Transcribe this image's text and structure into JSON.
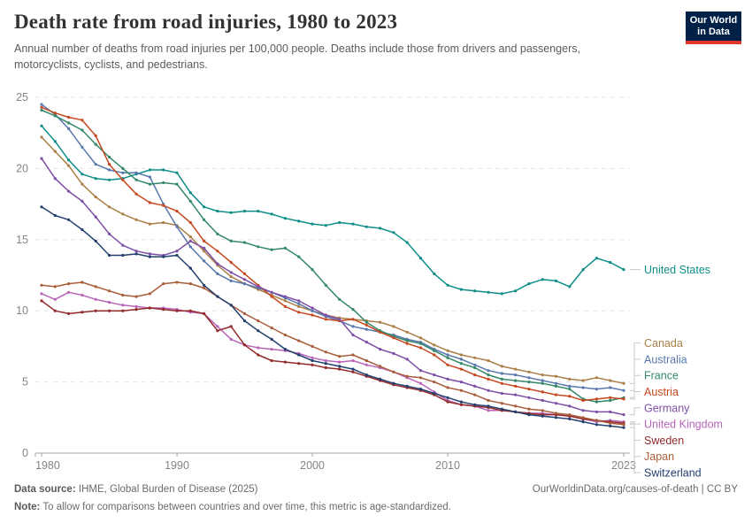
{
  "header": {
    "title": "Death rate from road injuries, 1980 to 2023",
    "subtitle": "Annual number of deaths from road injuries per 100,000 people. Deaths include those from drivers and passengers, motorcyclists, cyclists, and pedestrians.",
    "logo": {
      "line1": "Our World",
      "line2": "in Data",
      "bg_color": "#002147",
      "accent_color": "#E0362C"
    }
  },
  "chart_data": {
    "type": "line",
    "title": "Death rate from road injuries, 1980 to 2023",
    "xlabel": "",
    "ylabel": "",
    "x_range": [
      1980,
      2023
    ],
    "years": [
      1980,
      1981,
      1982,
      1983,
      1984,
      1985,
      1986,
      1987,
      1988,
      1989,
      1990,
      1991,
      1992,
      1993,
      1994,
      1995,
      1996,
      1997,
      1998,
      1999,
      2000,
      2001,
      2002,
      2003,
      2004,
      2005,
      2006,
      2007,
      2008,
      2009,
      2010,
      2011,
      2012,
      2013,
      2014,
      2015,
      2016,
      2017,
      2018,
      2019,
      2020,
      2021,
      2022,
      2023
    ],
    "ylim": [
      0,
      25
    ],
    "y_ticks": [
      0,
      5,
      10,
      15,
      20,
      25
    ],
    "x_ticks": [
      1980,
      1990,
      2000,
      2010,
      2023
    ],
    "grid": "horizontal-dashed",
    "legend_position": "right-labels",
    "style": {
      "grid_color": "#E4E4E4",
      "axis_color": "#A6A6A6",
      "tick_label_color": "#858585",
      "connector_color": "#C9C9C9"
    },
    "series": [
      {
        "name": "United States",
        "color": "#0F8E89",
        "values": [
          23.0,
          21.9,
          20.6,
          19.6,
          19.3,
          19.2,
          19.3,
          19.6,
          19.9,
          19.9,
          19.7,
          18.3,
          17.3,
          17.0,
          16.9,
          17.0,
          17.0,
          16.8,
          16.5,
          16.3,
          16.1,
          16.0,
          16.2,
          16.1,
          15.9,
          15.8,
          15.5,
          14.8,
          13.7,
          12.6,
          11.8,
          11.5,
          11.4,
          11.3,
          11.2,
          11.4,
          11.9,
          12.2,
          12.1,
          11.7,
          12.9,
          13.7,
          13.4,
          12.9
        ]
      },
      {
        "name": "Canada",
        "color": "#AB7F47",
        "values": [
          22.2,
          21.2,
          20.2,
          18.9,
          18.0,
          17.3,
          16.8,
          16.4,
          16.1,
          16.2,
          16.0,
          15.2,
          14.2,
          13.2,
          12.4,
          11.9,
          11.5,
          11.1,
          10.7,
          10.3,
          10.0,
          9.7,
          9.5,
          9.4,
          9.3,
          9.2,
          8.9,
          8.5,
          8.1,
          7.6,
          7.2,
          6.9,
          6.7,
          6.5,
          6.1,
          5.9,
          5.7,
          5.5,
          5.4,
          5.2,
          5.1,
          5.3,
          5.1,
          4.9
        ]
      },
      {
        "name": "Australia",
        "color": "#5878AE",
        "values": [
          24.5,
          23.8,
          22.8,
          21.5,
          20.3,
          19.9,
          19.7,
          19.7,
          19.4,
          17.5,
          15.9,
          14.5,
          13.5,
          12.6,
          12.1,
          11.9,
          11.6,
          11.3,
          10.9,
          10.5,
          10.0,
          9.6,
          9.3,
          8.9,
          8.7,
          8.5,
          8.3,
          8.0,
          7.8,
          7.3,
          6.9,
          6.6,
          6.2,
          5.8,
          5.6,
          5.5,
          5.3,
          5.1,
          4.9,
          4.7,
          4.6,
          4.5,
          4.6,
          4.4
        ]
      },
      {
        "name": "France",
        "color": "#348868",
        "values": [
          24.1,
          23.7,
          23.2,
          22.7,
          21.7,
          20.8,
          20.0,
          19.2,
          18.9,
          19.0,
          18.9,
          17.7,
          16.4,
          15.4,
          14.9,
          14.8,
          14.5,
          14.3,
          14.4,
          13.8,
          12.9,
          11.8,
          10.8,
          10.1,
          9.2,
          8.6,
          8.2,
          7.9,
          7.7,
          7.2,
          6.7,
          6.3,
          6.0,
          5.5,
          5.2,
          5.1,
          5.0,
          4.9,
          4.7,
          4.5,
          3.8,
          3.6,
          3.7,
          3.9
        ]
      },
      {
        "name": "Austria",
        "color": "#C5481F",
        "values": [
          24.3,
          23.9,
          23.6,
          23.4,
          22.3,
          20.3,
          19.2,
          18.2,
          17.6,
          17.4,
          17.0,
          16.2,
          14.9,
          14.2,
          13.4,
          12.6,
          11.8,
          11.0,
          10.3,
          9.9,
          9.7,
          9.4,
          9.3,
          9.4,
          9.0,
          8.5,
          8.1,
          7.7,
          7.4,
          6.9,
          6.2,
          5.9,
          5.5,
          5.2,
          4.9,
          4.7,
          4.5,
          4.3,
          4.1,
          4.0,
          3.7,
          3.8,
          3.9,
          3.8
        ]
      },
      {
        "name": "Germany",
        "color": "#7D4FA6",
        "values": [
          20.7,
          19.3,
          18.4,
          17.7,
          16.6,
          15.4,
          14.6,
          14.2,
          14.0,
          13.9,
          14.2,
          14.9,
          14.4,
          13.3,
          12.7,
          12.2,
          11.7,
          11.3,
          11.0,
          10.7,
          10.2,
          9.7,
          9.4,
          8.3,
          7.8,
          7.3,
          7.0,
          6.6,
          5.8,
          5.5,
          5.2,
          5.0,
          4.7,
          4.4,
          4.2,
          4.1,
          3.9,
          3.7,
          3.5,
          3.3,
          3.0,
          2.9,
          2.9,
          2.7
        ]
      },
      {
        "name": "United Kingdom",
        "color": "#B864B8",
        "values": [
          11.2,
          10.8,
          11.3,
          11.1,
          10.8,
          10.6,
          10.4,
          10.3,
          10.2,
          10.2,
          10.1,
          9.9,
          9.8,
          8.9,
          8.0,
          7.6,
          7.4,
          7.3,
          7.2,
          7.0,
          6.7,
          6.5,
          6.4,
          6.5,
          6.2,
          6.0,
          5.7,
          5.3,
          4.9,
          4.3,
          3.7,
          3.4,
          3.3,
          3.0,
          3.0,
          2.9,
          2.8,
          2.8,
          2.7,
          2.6,
          2.4,
          2.2,
          2.3,
          2.2
        ]
      },
      {
        "name": "Sweden",
        "color": "#932A2A",
        "values": [
          10.7,
          10.0,
          9.8,
          9.9,
          10.0,
          10.0,
          10.0,
          10.1,
          10.2,
          10.1,
          10.0,
          10.0,
          9.8,
          8.6,
          8.9,
          7.6,
          6.9,
          6.5,
          6.4,
          6.3,
          6.2,
          6.0,
          5.9,
          5.7,
          5.4,
          5.1,
          4.8,
          4.6,
          4.4,
          4.1,
          3.6,
          3.4,
          3.3,
          3.2,
          3.0,
          2.9,
          2.8,
          2.7,
          2.7,
          2.6,
          2.4,
          2.3,
          2.2,
          2.1
        ]
      },
      {
        "name": "Japan",
        "color": "#A85E3B",
        "values": [
          11.8,
          11.7,
          11.9,
          12.0,
          11.7,
          11.4,
          11.1,
          11.0,
          11.2,
          11.9,
          12.0,
          11.9,
          11.6,
          11.0,
          10.4,
          9.8,
          9.3,
          8.8,
          8.3,
          7.9,
          7.5,
          7.1,
          6.8,
          6.9,
          6.5,
          6.1,
          5.7,
          5.4,
          5.3,
          5.0,
          4.6,
          4.4,
          4.1,
          3.7,
          3.5,
          3.3,
          3.1,
          3.0,
          2.8,
          2.7,
          2.5,
          2.3,
          2.1,
          2.0
        ]
      },
      {
        "name": "Switzerland",
        "color": "#23406F",
        "values": [
          17.3,
          16.7,
          16.4,
          15.7,
          14.9,
          13.9,
          13.9,
          14.0,
          13.8,
          13.8,
          13.9,
          13.0,
          11.8,
          11.0,
          10.4,
          9.3,
          8.6,
          8.0,
          7.3,
          6.9,
          6.5,
          6.3,
          6.1,
          5.9,
          5.5,
          5.2,
          4.9,
          4.7,
          4.5,
          4.2,
          3.9,
          3.6,
          3.4,
          3.3,
          3.1,
          2.9,
          2.7,
          2.6,
          2.5,
          2.4,
          2.2,
          2.0,
          1.9,
          1.8
        ]
      }
    ]
  },
  "footer": {
    "source_label": "Data source:",
    "source_text": "IHME, Global Burden of Disease (2025)",
    "license_text": "OurWorldinData.org/causes-of-death | CC BY",
    "note_label": "Note:",
    "note_text": "To allow for comparisons between countries and over time, this metric is age-standardized."
  }
}
